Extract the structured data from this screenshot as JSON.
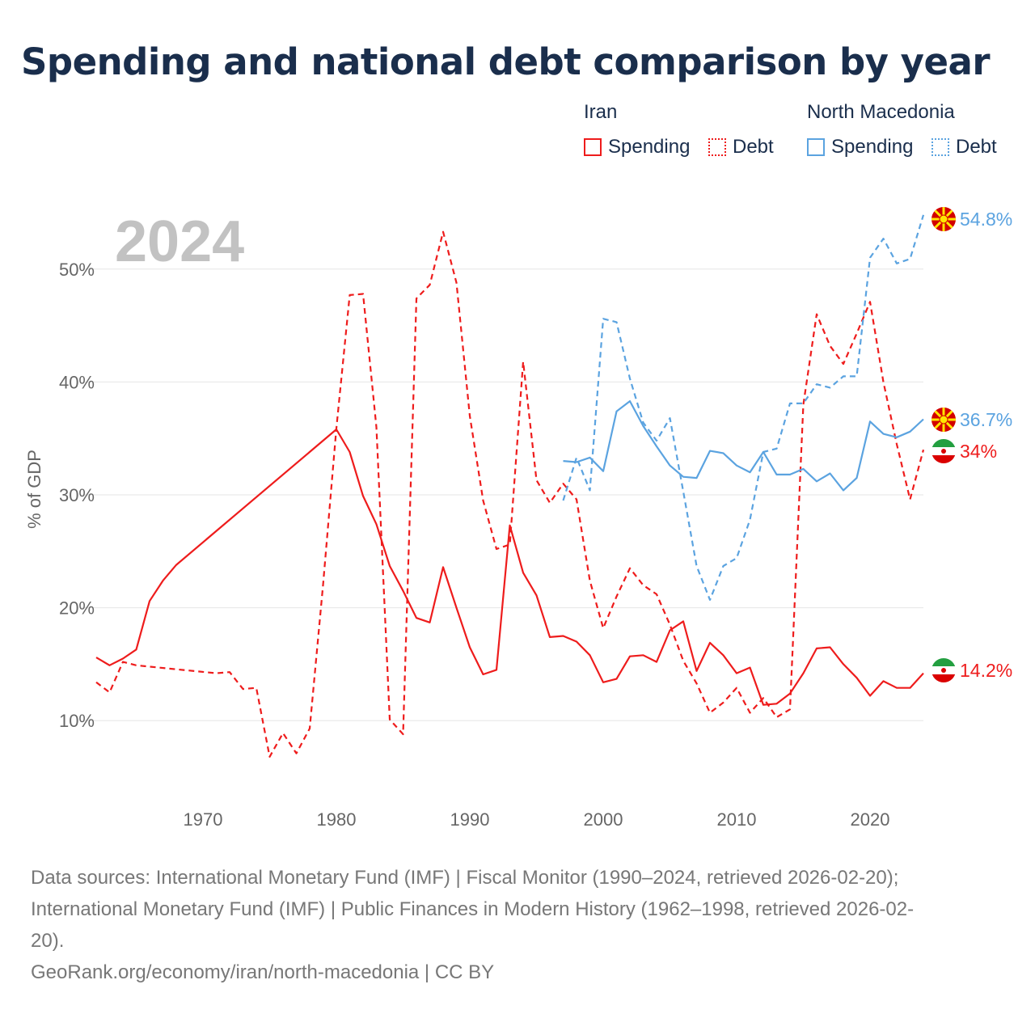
{
  "title": "Spending and national debt comparison by year",
  "legend": {
    "groups": [
      {
        "name": "Iran",
        "color": "#ee1c1c",
        "items": [
          "Spending",
          "Debt"
        ]
      },
      {
        "name": "North Macedonia",
        "color": "#5ba3e0",
        "items": [
          "Spending",
          "Debt"
        ]
      }
    ]
  },
  "year_label": "2024",
  "chart_data": {
    "type": "line",
    "title": "Spending and national debt comparison by year",
    "ylabel": "% of GDP",
    "xlabel": "",
    "xlim": [
      1962,
      2024
    ],
    "ylim": [
      4,
      55
    ],
    "x_ticks": [
      1970,
      1980,
      1990,
      2000,
      2010,
      2020
    ],
    "y_ticks": [
      10,
      20,
      30,
      40,
      50
    ],
    "y_tick_labels": [
      "10%",
      "20%",
      "30%",
      "40%",
      "50%"
    ],
    "series": [
      {
        "name": "Iran Spending",
        "country": "Iran",
        "metric": "Spending",
        "color": "#ee1c1c",
        "dash": "solid",
        "end_label": "14.2%",
        "points": [
          [
            1962,
            15.6
          ],
          [
            1963,
            14.9
          ],
          [
            1964,
            15.5
          ],
          [
            1965,
            16.3
          ],
          [
            1966,
            20.6
          ],
          [
            1967,
            22.4
          ],
          [
            1968,
            23.8
          ],
          [
            1980,
            35.8
          ],
          [
            1981,
            33.8
          ],
          [
            1982,
            29.9
          ],
          [
            1983,
            27.4
          ],
          [
            1984,
            23.7
          ],
          [
            1985,
            21.5
          ],
          [
            1986,
            19.1
          ],
          [
            1987,
            18.7
          ],
          [
            1988,
            23.6
          ],
          [
            1989,
            20.0
          ],
          [
            1990,
            16.5
          ],
          [
            1991,
            14.1
          ],
          [
            1992,
            14.5
          ],
          [
            1993,
            27.3
          ],
          [
            1994,
            23.1
          ],
          [
            1995,
            21.1
          ],
          [
            1996,
            17.4
          ],
          [
            1997,
            17.5
          ],
          [
            1998,
            17.0
          ],
          [
            1999,
            15.8
          ],
          [
            2000,
            13.4
          ],
          [
            2001,
            13.7
          ],
          [
            2002,
            15.7
          ],
          [
            2003,
            15.8
          ],
          [
            2004,
            15.2
          ],
          [
            2005,
            18.0
          ],
          [
            2006,
            18.8
          ],
          [
            2007,
            14.4
          ],
          [
            2008,
            16.9
          ],
          [
            2009,
            15.8
          ],
          [
            2010,
            14.2
          ],
          [
            2011,
            14.7
          ],
          [
            2012,
            11.4
          ],
          [
            2013,
            11.5
          ],
          [
            2014,
            12.4
          ],
          [
            2015,
            14.2
          ],
          [
            2016,
            16.4
          ],
          [
            2017,
            16.5
          ],
          [
            2018,
            15.0
          ],
          [
            2019,
            13.8
          ],
          [
            2020,
            12.2
          ],
          [
            2021,
            13.5
          ],
          [
            2022,
            12.9
          ],
          [
            2023,
            12.9
          ],
          [
            2024,
            14.2
          ]
        ]
      },
      {
        "name": "Iran Debt",
        "country": "Iran",
        "metric": "Debt",
        "color": "#ee1c1c",
        "dash": "dashed",
        "end_label": "34%",
        "points": [
          [
            1962,
            13.4
          ],
          [
            1963,
            12.5
          ],
          [
            1964,
            15.2
          ],
          [
            1965,
            14.9
          ],
          [
            1971,
            14.2
          ],
          [
            1972,
            14.3
          ],
          [
            1973,
            12.8
          ],
          [
            1974,
            12.9
          ],
          [
            1975,
            6.8
          ],
          [
            1976,
            8.9
          ],
          [
            1977,
            7.1
          ],
          [
            1978,
            9.3
          ],
          [
            1979,
            22.0
          ],
          [
            1980,
            35.9
          ],
          [
            1981,
            47.7
          ],
          [
            1982,
            47.8
          ],
          [
            1983,
            36.0
          ],
          [
            1984,
            10.1
          ],
          [
            1985,
            8.8
          ],
          [
            1986,
            47.4
          ],
          [
            1987,
            48.6
          ],
          [
            1988,
            53.3
          ],
          [
            1989,
            48.8
          ],
          [
            1990,
            37.0
          ],
          [
            1991,
            29.5
          ],
          [
            1992,
            25.2
          ],
          [
            1993,
            25.6
          ],
          [
            1994,
            41.8
          ],
          [
            1995,
            31.3
          ],
          [
            1996,
            29.3
          ],
          [
            1997,
            31.0
          ],
          [
            1998,
            29.6
          ],
          [
            1999,
            22.4
          ],
          [
            2000,
            18.2
          ],
          [
            2001,
            21.0
          ],
          [
            2002,
            23.5
          ],
          [
            2003,
            22.0
          ],
          [
            2004,
            21.2
          ],
          [
            2005,
            18.5
          ],
          [
            2006,
            15.3
          ],
          [
            2007,
            13.3
          ],
          [
            2008,
            10.7
          ],
          [
            2009,
            11.6
          ],
          [
            2010,
            12.9
          ],
          [
            2011,
            10.7
          ],
          [
            2012,
            12.0
          ],
          [
            2013,
            10.3
          ],
          [
            2014,
            11.0
          ],
          [
            2015,
            38.0
          ],
          [
            2016,
            46.0
          ],
          [
            2017,
            43.2
          ],
          [
            2018,
            41.6
          ],
          [
            2019,
            44.3
          ],
          [
            2020,
            47.1
          ],
          [
            2021,
            40.0
          ],
          [
            2022,
            34.5
          ],
          [
            2023,
            29.6
          ],
          [
            2024,
            34.0
          ]
        ]
      },
      {
        "name": "North Macedonia Spending",
        "country": "North Macedonia",
        "metric": "Spending",
        "color": "#5ba3e0",
        "dash": "solid",
        "end_label": "36.7%",
        "points": [
          [
            1997,
            33.0
          ],
          [
            1998,
            32.9
          ],
          [
            1999,
            33.3
          ],
          [
            2000,
            32.1
          ],
          [
            2001,
            37.4
          ],
          [
            2002,
            38.3
          ],
          [
            2003,
            36.1
          ],
          [
            2004,
            34.3
          ],
          [
            2005,
            32.6
          ],
          [
            2006,
            31.6
          ],
          [
            2007,
            31.5
          ],
          [
            2008,
            33.9
          ],
          [
            2009,
            33.7
          ],
          [
            2010,
            32.6
          ],
          [
            2011,
            32.0
          ],
          [
            2012,
            33.8
          ],
          [
            2013,
            31.8
          ],
          [
            2014,
            31.8
          ],
          [
            2015,
            32.3
          ],
          [
            2016,
            31.2
          ],
          [
            2017,
            31.9
          ],
          [
            2018,
            30.4
          ],
          [
            2019,
            31.5
          ],
          [
            2020,
            36.5
          ],
          [
            2021,
            35.4
          ],
          [
            2022,
            35.1
          ],
          [
            2023,
            35.6
          ],
          [
            2024,
            36.7
          ]
        ]
      },
      {
        "name": "North Macedonia Debt",
        "country": "North Macedonia",
        "metric": "Debt",
        "color": "#5ba3e0",
        "dash": "dashed",
        "end_label": "54.8%",
        "points": [
          [
            1997,
            29.5
          ],
          [
            1998,
            33.3
          ],
          [
            1999,
            30.4
          ],
          [
            2000,
            45.6
          ],
          [
            2001,
            45.3
          ],
          [
            2002,
            40.3
          ],
          [
            2003,
            36.4
          ],
          [
            2004,
            34.8
          ],
          [
            2005,
            36.8
          ],
          [
            2006,
            30.3
          ],
          [
            2007,
            23.7
          ],
          [
            2008,
            20.7
          ],
          [
            2009,
            23.7
          ],
          [
            2010,
            24.4
          ],
          [
            2011,
            27.8
          ],
          [
            2012,
            33.8
          ],
          [
            2013,
            34.1
          ],
          [
            2014,
            38.1
          ],
          [
            2015,
            38.1
          ],
          [
            2016,
            39.8
          ],
          [
            2017,
            39.5
          ],
          [
            2018,
            40.5
          ],
          [
            2019,
            40.5
          ],
          [
            2020,
            51.0
          ],
          [
            2021,
            52.7
          ],
          [
            2022,
            50.5
          ],
          [
            2023,
            50.9
          ],
          [
            2024,
            54.8
          ]
        ]
      }
    ]
  },
  "sources": {
    "line1": "Data sources: International Monetary Fund (IMF) | Fiscal Monitor (1990–2024, retrieved 2026-02-20);",
    "line2": "International Monetary Fund (IMF) | Public Finances in Modern History (1962–1998, retrieved 2026-02-",
    "line3": "20).",
    "attribution": "GeoRank.org/economy/iran/north-macedonia | CC BY"
  }
}
